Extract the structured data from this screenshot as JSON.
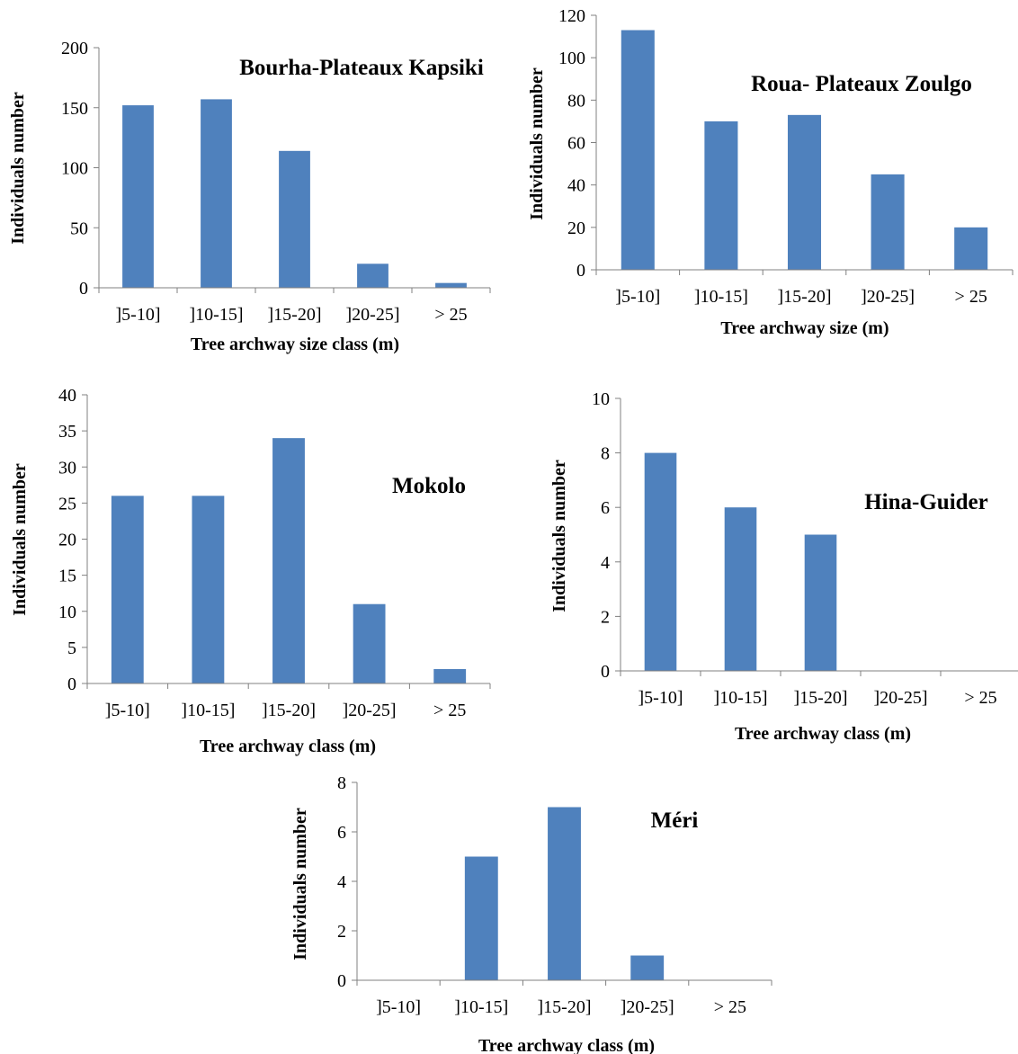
{
  "colors": {
    "bar": "#4f81bd",
    "axis": "#808080"
  },
  "chart_data": [
    {
      "type": "bar",
      "title": "Bourha-Plateaux Kapsiki",
      "xlabel": "Tree archway size class (m)",
      "ylabel": "Individuals  number",
      "categories": [
        "]5-10]",
        "]10-15]",
        "]15-20]",
        "]20-25]",
        "> 25"
      ],
      "values": [
        152,
        157,
        114,
        20,
        4
      ],
      "ylim": [
        0,
        200
      ],
      "yticks": [
        0,
        50,
        100,
        150,
        200
      ],
      "grid": false,
      "legend": "none"
    },
    {
      "type": "bar",
      "title": "Roua- Plateaux Zoulgo",
      "xlabel": "Tree archway size (m)",
      "ylabel": "Individuals  number",
      "categories": [
        "]5-10]",
        "]10-15]",
        "]15-20]",
        "]20-25]",
        "> 25"
      ],
      "values": [
        113,
        70,
        73,
        45,
        20
      ],
      "ylim": [
        0,
        120
      ],
      "yticks": [
        0,
        20,
        40,
        60,
        80,
        100,
        120
      ],
      "grid": false,
      "legend": "none"
    },
    {
      "type": "bar",
      "title": "Mokolo",
      "xlabel": "Tree archway class (m)",
      "ylabel": "Individuals  number",
      "categories": [
        "]5-10]",
        "]10-15]",
        "]15-20]",
        "]20-25]",
        "> 25"
      ],
      "values": [
        26,
        26,
        34,
        11,
        2
      ],
      "ylim": [
        0,
        40
      ],
      "yticks": [
        0,
        5,
        10,
        15,
        20,
        25,
        30,
        35,
        40
      ],
      "grid": false,
      "legend": "none"
    },
    {
      "type": "bar",
      "title": "Hina-Guider",
      "xlabel": "Tree archway class (m)",
      "ylabel": "Individuals  number",
      "categories": [
        "]5-10]",
        "]10-15]",
        "]15-20]",
        "]20-25]",
        "> 25"
      ],
      "values": [
        8,
        6,
        5,
        0,
        0
      ],
      "ylim": [
        0,
        10
      ],
      "yticks": [
        0,
        2,
        4,
        6,
        8,
        10
      ],
      "grid": false,
      "legend": "none"
    },
    {
      "type": "bar",
      "title": "Méri",
      "xlabel": "Tree archway class (m)",
      "ylabel": "Individuals  number",
      "categories": [
        "]5-10]",
        "]10-15]",
        "]15-20]",
        "]20-25]",
        "> 25"
      ],
      "values": [
        0,
        5,
        7,
        1,
        0
      ],
      "ylim": [
        0,
        8
      ],
      "yticks": [
        0,
        2,
        4,
        6,
        8
      ],
      "grid": false,
      "legend": "none"
    }
  ]
}
